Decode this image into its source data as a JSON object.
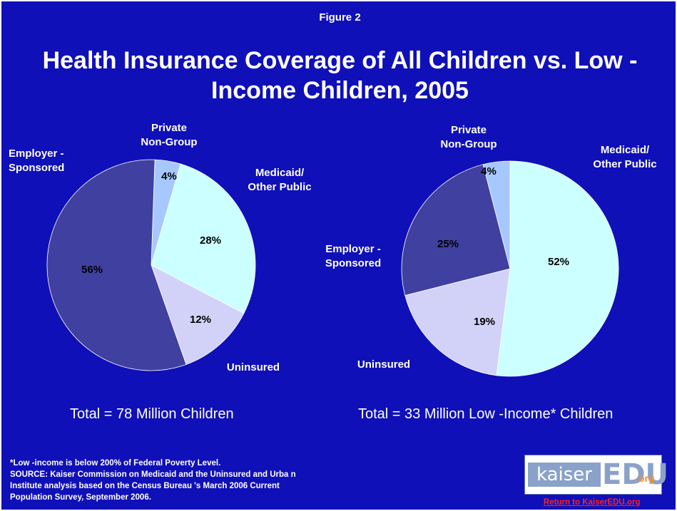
{
  "header": {
    "figure_label": "Figure 2",
    "title_line1": "Health Insurance Coverage of All Children vs. Low - ",
    "title_line2": "Income Children, 2005"
  },
  "chart_data": [
    {
      "type": "pie",
      "slices": [
        {
          "category": "Private Non-Group",
          "label_lines": [
            "Private",
            "Non-Group"
          ],
          "value": 4,
          "label": "4%",
          "color": "#a6c8ff"
        },
        {
          "category": "Medicaid/ Other Public",
          "label_lines": [
            "Medicaid/",
            "Other Public"
          ],
          "value": 28,
          "label": "28%",
          "color": "#ccffff"
        },
        {
          "category": "Uninsured",
          "label_lines": [
            "Uninsured"
          ],
          "value": 12,
          "label": "12%",
          "color": "#d2d2f8"
        },
        {
          "category": "Employer - Sponsored",
          "label_lines": [
            "Employer -",
            "Sponsored"
          ],
          "value": 56,
          "label": "56%",
          "color": "#4040a0"
        }
      ],
      "total_caption": "Total =  78 Million Children"
    },
    {
      "type": "pie",
      "slices": [
        {
          "category": "Medicaid/ Other Public",
          "label_lines": [
            "Medicaid/",
            "Other Public"
          ],
          "value": 52,
          "label": "52%",
          "color": "#ccffff"
        },
        {
          "category": "Uninsured",
          "label_lines": [
            "Uninsured"
          ],
          "value": 19,
          "label": "19%",
          "color": "#d2d2f8"
        },
        {
          "category": "Employer - Sponsored",
          "label_lines": [
            "Employer -",
            "Sponsored"
          ],
          "value": 25,
          "label": "25%",
          "color": "#4040a0"
        },
        {
          "category": "Private Non-Group",
          "label_lines": [
            "Private",
            "Non-Group"
          ],
          "value": 4,
          "label": "4%",
          "color": "#a6c8ff"
        }
      ],
      "total_caption": "Total =  33 Million Low  -Income* Children"
    }
  ],
  "footnote": {
    "line1": "*Low -income is below 200% of Federal Poverty Level.",
    "line2": "SOURCE: Kaiser Commission on Medicaid and the Uninsured and Urba            n",
    "line3": "Institute analysis based on the Census Bureau       's March 2006 Current",
    "line4": "Population Survey, September 2006."
  },
  "logo": {
    "kaiser": "kaiser",
    "edu": "EDU",
    "org": ".org",
    "link_text": "Return to KaiserEDU.org"
  },
  "colors": {
    "background": "#1010b8",
    "text": "#ffffff",
    "link": "#ff2020"
  }
}
